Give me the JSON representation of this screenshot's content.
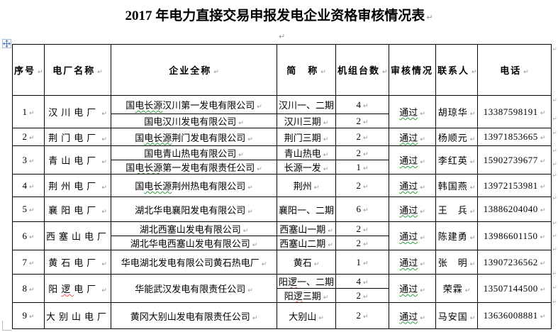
{
  "marks": {
    "pilcrow": "↵"
  },
  "title": {
    "text": "2017 年电力直接交易申报发电企业资格审核情况表"
  },
  "colors": {
    "wavy_green": "#2e9e3e",
    "wavy_red": "#ff4f4f",
    "mark_gray": "#8b96a3",
    "border": "#000000",
    "handle_blue": "#4a79b8"
  },
  "icons": {
    "table_move_handle": "move-cross-icon",
    "margin_corner": "page-margin-corner-mark"
  },
  "table": {
    "headers": {
      "no": "序号",
      "plant": "电厂名称",
      "company": "企业全称",
      "abbr": "简　称",
      "units": "机组台数",
      "status": "审核情况",
      "contact": "联系人",
      "phone": "电话"
    },
    "rows": [
      {
        "no": "1",
        "plant": "汉川电厂",
        "status": "通过",
        "contact": "胡琼华",
        "phone": "13387598191",
        "subs": [
          {
            "company_parts": [
              "国",
              "电长源",
              "汉川第一发电有限公司"
            ],
            "abbr": "汉川一、二期",
            "units": "4"
          },
          {
            "company": "国电汉川发电有限公司",
            "abbr": "汉川三期",
            "units": "2"
          }
        ]
      },
      {
        "no": "2",
        "plant": "荆门电厂",
        "status": "通过",
        "contact": "杨顺元",
        "phone": "13971853665",
        "subs": [
          {
            "company_parts": [
              "国",
              "电长源",
              "荆门发电有限公司"
            ],
            "abbr": "荆门三期",
            "units": "2"
          }
        ]
      },
      {
        "no": "3",
        "plant": "青山电厂",
        "status": "通过",
        "contact": "李红英",
        "phone": "15902739677",
        "subs": [
          {
            "company": "国电青山热电有限公司",
            "abbr": "青山热电",
            "units": "2"
          },
          {
            "company_parts": [
              "国",
              "电长源",
              "第一发电有限责任公司"
            ],
            "abbr": "长源一发",
            "units": "1"
          }
        ]
      },
      {
        "no": "4",
        "plant": "荆州电厂",
        "status": "通过",
        "contact": "韩国燕",
        "phone": "13972153981",
        "subs": [
          {
            "company_parts": [
              "国",
              "电长源",
              "荆州热电有限公司"
            ],
            "abbr": "荆州",
            "units": "2"
          }
        ]
      },
      {
        "no": "5",
        "plant": "襄阳电厂",
        "status": "通过",
        "contact": "王　兵",
        "phone": "13886204040",
        "subs": [
          {
            "company": "湖北华电襄阳发电有限公司",
            "abbr": "襄阳一、二期",
            "units": "6"
          }
        ]
      },
      {
        "no": "6",
        "plant": "西塞山电厂",
        "status": "通过",
        "contact": "陈建勇",
        "phone": "13986601150",
        "subs": [
          {
            "company": "湖北西塞山发电有限公司",
            "abbr": "西塞山一期",
            "units": "2"
          },
          {
            "company": "湖北华电西塞山发电有限公司",
            "abbr": "西塞山二期",
            "units": "2"
          }
        ]
      },
      {
        "no": "7",
        "plant": "黄石电厂",
        "status": "通过",
        "contact": "张　明",
        "phone": "13907236562",
        "subs": [
          {
            "company": "华电湖北发电有限公司黄石热电厂",
            "abbr": "黄石",
            "units": "1"
          }
        ]
      },
      {
        "no": "8",
        "plant_parts": [
          "阳",
          "逻",
          "电厂"
        ],
        "company": "华能武汉发电有限责任公司",
        "status": "通过",
        "contact": "荣霖",
        "phone": "13507144500",
        "subs": [
          {
            "abbr_parts": [
              "阳",
              "逻",
              "一、二期"
            ],
            "units": "4"
          },
          {
            "abbr_parts": [
              "阳",
              "逻",
              "三期"
            ],
            "units": "2"
          }
        ]
      },
      {
        "no": "9",
        "plant": "大别山电厂",
        "status": "通过",
        "contact": "马安国",
        "phone": "13636008881",
        "subs": [
          {
            "company": "黄冈大别山发电有限责任公司",
            "abbr": "大别山",
            "units": "2"
          }
        ]
      }
    ]
  }
}
